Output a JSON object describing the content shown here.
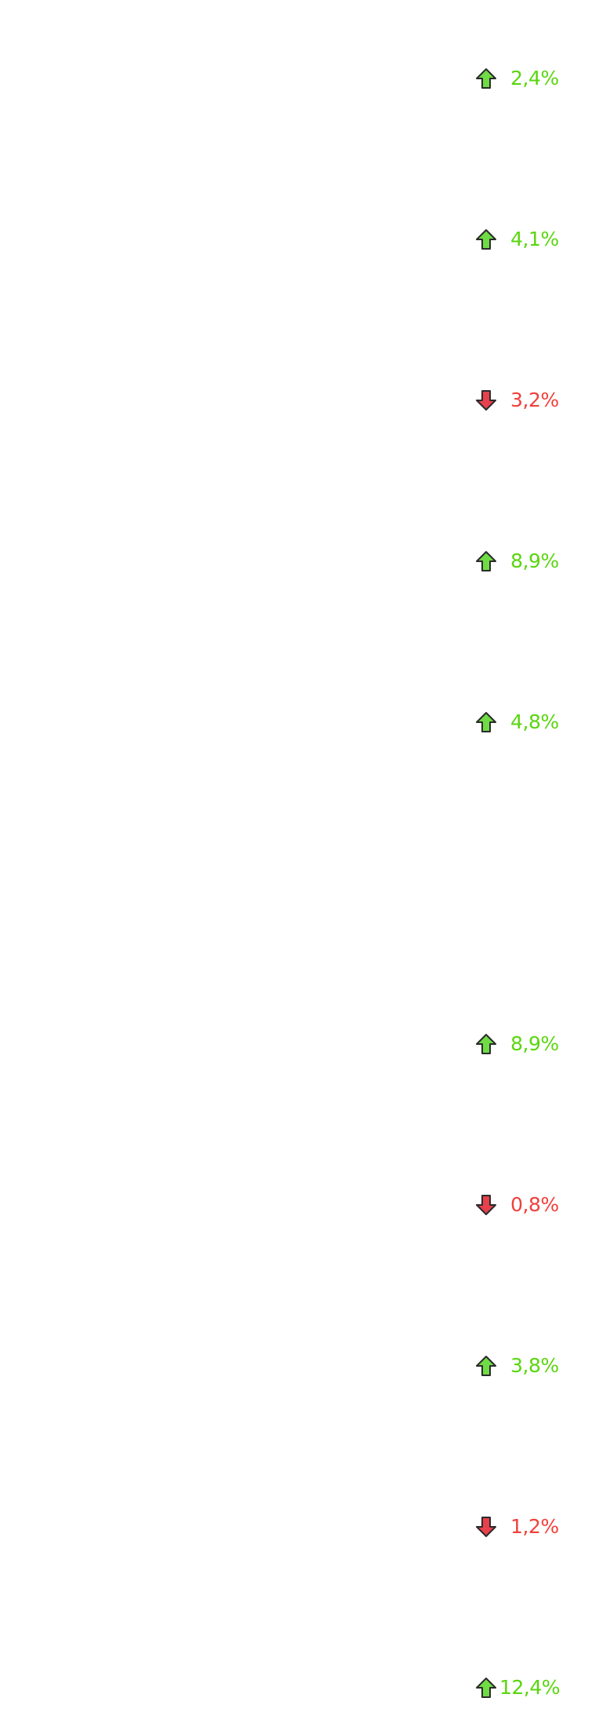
{
  "colors": {
    "up": "#5ad60f",
    "up_icon": "#6fdc45",
    "down": "#f0403c",
    "down_icon": "#e8404c",
    "icon_outline": "#2b2b2b"
  },
  "icons": {
    "up": "arrow-up-icon",
    "down": "arrow-down-icon"
  },
  "changes": [
    {
      "direction": "up",
      "value": "2,4%"
    },
    {
      "direction": "up",
      "value": "4,1%"
    },
    {
      "direction": "down",
      "value": "3,2%"
    },
    {
      "direction": "up",
      "value": "8,9%"
    },
    {
      "direction": "up",
      "value": "4,8%"
    },
    {
      "direction": "up",
      "value": "8,9%"
    },
    {
      "direction": "down",
      "value": "0,8%"
    },
    {
      "direction": "up",
      "value": "3,8%"
    },
    {
      "direction": "down",
      "value": "1,2%"
    },
    {
      "direction": "up",
      "value": "12,4%"
    }
  ]
}
